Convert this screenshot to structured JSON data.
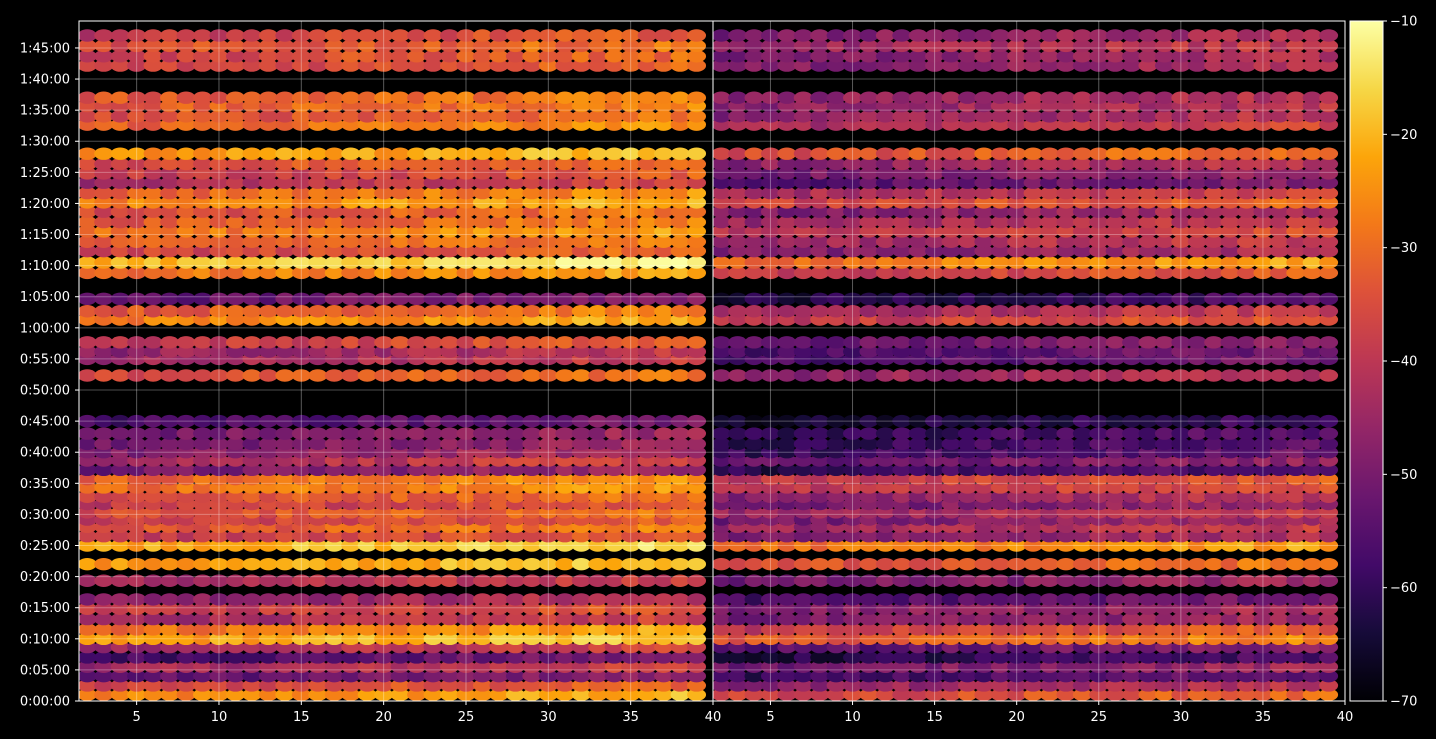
{
  "chart_data": [
    {
      "type": "heatmap",
      "panel": "left",
      "title": "",
      "xlabel": "",
      "ylabel": "",
      "xlim": [
        1.5,
        40
      ],
      "ylim": [
        0,
        6560
      ],
      "x_ticks": [
        5,
        10,
        15,
        20,
        25,
        30,
        35,
        40
      ],
      "y_ticks": [
        {
          "value": 0,
          "label": "0:00:00"
        },
        {
          "value": 300,
          "label": "0:05:00"
        },
        {
          "value": 600,
          "label": "0:10:00"
        },
        {
          "value": 900,
          "label": "0:15:00"
        },
        {
          "value": 1200,
          "label": "0:20:00"
        },
        {
          "value": 1500,
          "label": "0:25:00"
        },
        {
          "value": 1800,
          "label": "0:30:00"
        },
        {
          "value": 2100,
          "label": "0:35:00"
        },
        {
          "value": 2400,
          "label": "0:40:00"
        },
        {
          "value": 2700,
          "label": "0:45:00"
        },
        {
          "value": 3000,
          "label": "0:50:00"
        },
        {
          "value": 3300,
          "label": "0:55:00"
        },
        {
          "value": 3600,
          "label": "1:00:00"
        },
        {
          "value": 3900,
          "label": "1:05:00"
        },
        {
          "value": 4200,
          "label": "1:10:00"
        },
        {
          "value": 4500,
          "label": "1:15:00"
        },
        {
          "value": 4800,
          "label": "1:20:00"
        },
        {
          "value": 5100,
          "label": "1:25:00"
        },
        {
          "value": 5400,
          "label": "1:30:00"
        },
        {
          "value": 5700,
          "label": "1:35:00"
        },
        {
          "value": 6000,
          "label": "1:40:00"
        },
        {
          "value": 6300,
          "label": "1:45:00"
        }
      ],
      "grid": true,
      "row_levels": [
        {
          "t": 60,
          "v": -28
        },
        {
          "t": 150,
          "v": -38
        },
        {
          "t": 240,
          "v": -55
        },
        {
          "t": 330,
          "v": -45
        },
        {
          "t": 420,
          "v": -58
        },
        {
          "t": 520,
          "v": -45
        },
        {
          "t": 600,
          "v": -24
        },
        {
          "t": 690,
          "v": -30
        },
        {
          "t": 790,
          "v": -45
        },
        {
          "t": 890,
          "v": -40
        },
        {
          "t": 980,
          "v": -48
        },
        {
          "t": 1160,
          "v": -45
        },
        {
          "t": 1320,
          "v": -25
        },
        {
          "t": 1500,
          "v": -22
        },
        {
          "t": 1590,
          "v": -40
        },
        {
          "t": 1680,
          "v": -35
        },
        {
          "t": 1750,
          "v": -40
        },
        {
          "t": 1820,
          "v": -36
        },
        {
          "t": 1900,
          "v": -40
        },
        {
          "t": 1970,
          "v": -36
        },
        {
          "t": 2060,
          "v": -30
        },
        {
          "t": 2140,
          "v": -32
        },
        {
          "t": 2230,
          "v": -52
        },
        {
          "t": 2320,
          "v": -44
        },
        {
          "t": 2400,
          "v": -50
        },
        {
          "t": 2480,
          "v": -52
        },
        {
          "t": 2580,
          "v": -52
        },
        {
          "t": 2700,
          "v": -58
        },
        {
          "t": 3140,
          "v": -36
        },
        {
          "t": 3300,
          "v": -46
        },
        {
          "t": 3370,
          "v": -47
        },
        {
          "t": 3460,
          "v": -40
        },
        {
          "t": 3680,
          "v": -28
        },
        {
          "t": 3760,
          "v": -34
        },
        {
          "t": 3880,
          "v": -55
        },
        {
          "t": 4130,
          "v": -30
        },
        {
          "t": 4230,
          "v": -20
        },
        {
          "t": 4340,
          "v": -38
        },
        {
          "t": 4430,
          "v": -34
        },
        {
          "t": 4530,
          "v": -30
        },
        {
          "t": 4620,
          "v": -34
        },
        {
          "t": 4720,
          "v": -36
        },
        {
          "t": 4810,
          "v": -28
        },
        {
          "t": 4900,
          "v": -32
        },
        {
          "t": 5000,
          "v": -44
        },
        {
          "t": 5090,
          "v": -40
        },
        {
          "t": 5180,
          "v": -36
        },
        {
          "t": 5280,
          "v": -26
        },
        {
          "t": 5560,
          "v": -32
        },
        {
          "t": 5640,
          "v": -36
        },
        {
          "t": 5740,
          "v": -34
        },
        {
          "t": 5820,
          "v": -34
        },
        {
          "t": 6130,
          "v": -38
        },
        {
          "t": 6220,
          "v": -38
        },
        {
          "t": 6320,
          "v": -36
        },
        {
          "t": 6420,
          "v": -40
        }
      ]
    },
    {
      "type": "heatmap",
      "panel": "right",
      "title": "",
      "xlabel": "",
      "ylabel": "",
      "xlim": [
        1.5,
        40
      ],
      "ylim": [
        0,
        6560
      ],
      "x_ticks": [
        5,
        10,
        15,
        20,
        25,
        30,
        35,
        40
      ],
      "grid": true,
      "row_levels": [
        {
          "t": 60,
          "v": -38
        },
        {
          "t": 150,
          "v": -48
        },
        {
          "t": 240,
          "v": -60
        },
        {
          "t": 330,
          "v": -52
        },
        {
          "t": 420,
          "v": -64
        },
        {
          "t": 520,
          "v": -56
        },
        {
          "t": 600,
          "v": -34
        },
        {
          "t": 690,
          "v": -40
        },
        {
          "t": 790,
          "v": -52
        },
        {
          "t": 890,
          "v": -50
        },
        {
          "t": 980,
          "v": -58
        },
        {
          "t": 1160,
          "v": -52
        },
        {
          "t": 1320,
          "v": -36
        },
        {
          "t": 1500,
          "v": -30
        },
        {
          "t": 1590,
          "v": -50
        },
        {
          "t": 1680,
          "v": -46
        },
        {
          "t": 1750,
          "v": -52
        },
        {
          "t": 1820,
          "v": -46
        },
        {
          "t": 1900,
          "v": -52
        },
        {
          "t": 1970,
          "v": -48
        },
        {
          "t": 2060,
          "v": -42
        },
        {
          "t": 2140,
          "v": -40
        },
        {
          "t": 2230,
          "v": -62
        },
        {
          "t": 2320,
          "v": -54
        },
        {
          "t": 2400,
          "v": -60
        },
        {
          "t": 2480,
          "v": -62
        },
        {
          "t": 2580,
          "v": -62
        },
        {
          "t": 2700,
          "v": -66
        },
        {
          "t": 3140,
          "v": -48
        },
        {
          "t": 3300,
          "v": -58
        },
        {
          "t": 3370,
          "v": -58
        },
        {
          "t": 3460,
          "v": -54
        },
        {
          "t": 3680,
          "v": -40
        },
        {
          "t": 3760,
          "v": -46
        },
        {
          "t": 3880,
          "v": -64
        },
        {
          "t": 4130,
          "v": -40
        },
        {
          "t": 4230,
          "v": -30
        },
        {
          "t": 4340,
          "v": -50
        },
        {
          "t": 4430,
          "v": -46
        },
        {
          "t": 4530,
          "v": -42
        },
        {
          "t": 4620,
          "v": -46
        },
        {
          "t": 4720,
          "v": -50
        },
        {
          "t": 4810,
          "v": -38
        },
        {
          "t": 4900,
          "v": -44
        },
        {
          "t": 5000,
          "v": -56
        },
        {
          "t": 5090,
          "v": -52
        },
        {
          "t": 5180,
          "v": -48
        },
        {
          "t": 5280,
          "v": -36
        },
        {
          "t": 5560,
          "v": -44
        },
        {
          "t": 5640,
          "v": -48
        },
        {
          "t": 5740,
          "v": -48
        },
        {
          "t": 5820,
          "v": -48
        },
        {
          "t": 6130,
          "v": -50
        },
        {
          "t": 6220,
          "v": -50
        },
        {
          "t": 6320,
          "v": -46
        },
        {
          "t": 6420,
          "v": -50
        }
      ]
    }
  ],
  "colorbar": {
    "colormap": "inferno",
    "range": [
      -70,
      -10
    ],
    "ticks": [
      {
        "value": -10,
        "label": "−10"
      },
      {
        "value": -20,
        "label": "−20"
      },
      {
        "value": -30,
        "label": "−30"
      },
      {
        "value": -40,
        "label": "−40"
      },
      {
        "value": -50,
        "label": "−50"
      },
      {
        "value": -60,
        "label": "−60"
      },
      {
        "value": -70,
        "label": "−70"
      }
    ]
  },
  "colors": {
    "background": "#000000",
    "text": "#ffffff",
    "grid": "#ffffff"
  }
}
